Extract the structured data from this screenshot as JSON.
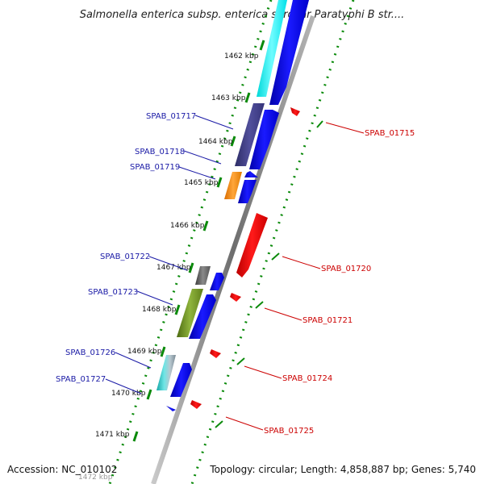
{
  "title": "Salmonella enterica subsp. enterica serovar Paratyphi B str....",
  "footer": {
    "accession": "Accession: NC_010102",
    "summary": "Topology: circular; Length: 4,858,887 bp; Genes: 5,740"
  },
  "colors": {
    "backbone": "#8a8a8a",
    "forward_arrow": "#0000ee",
    "reverse_arrow": "#ee0000",
    "forward_label": "#1a1aa6",
    "reverse_label": "#cc0000",
    "dotted_track": "#0a8a0a"
  },
  "ticks": [
    "1462 kbp",
    "1463 kbp",
    "1464 kbp",
    "1465 kbp",
    "1466 kbp",
    "1467 kbp",
    "1468 kbp",
    "1469 kbp",
    "1470 kbp",
    "1471 kbp",
    "1472 kbp"
  ],
  "forward_genes": [
    "SPAB_01717",
    "SPAB_01718",
    "SPAB_01719",
    "SPAB_01722",
    "SPAB_01723",
    "SPAB_01726",
    "SPAB_01727"
  ],
  "reverse_genes": [
    "SPAB_01715",
    "SPAB_01720",
    "SPAB_01721",
    "SPAB_01724",
    "SPAB_01725"
  ]
}
